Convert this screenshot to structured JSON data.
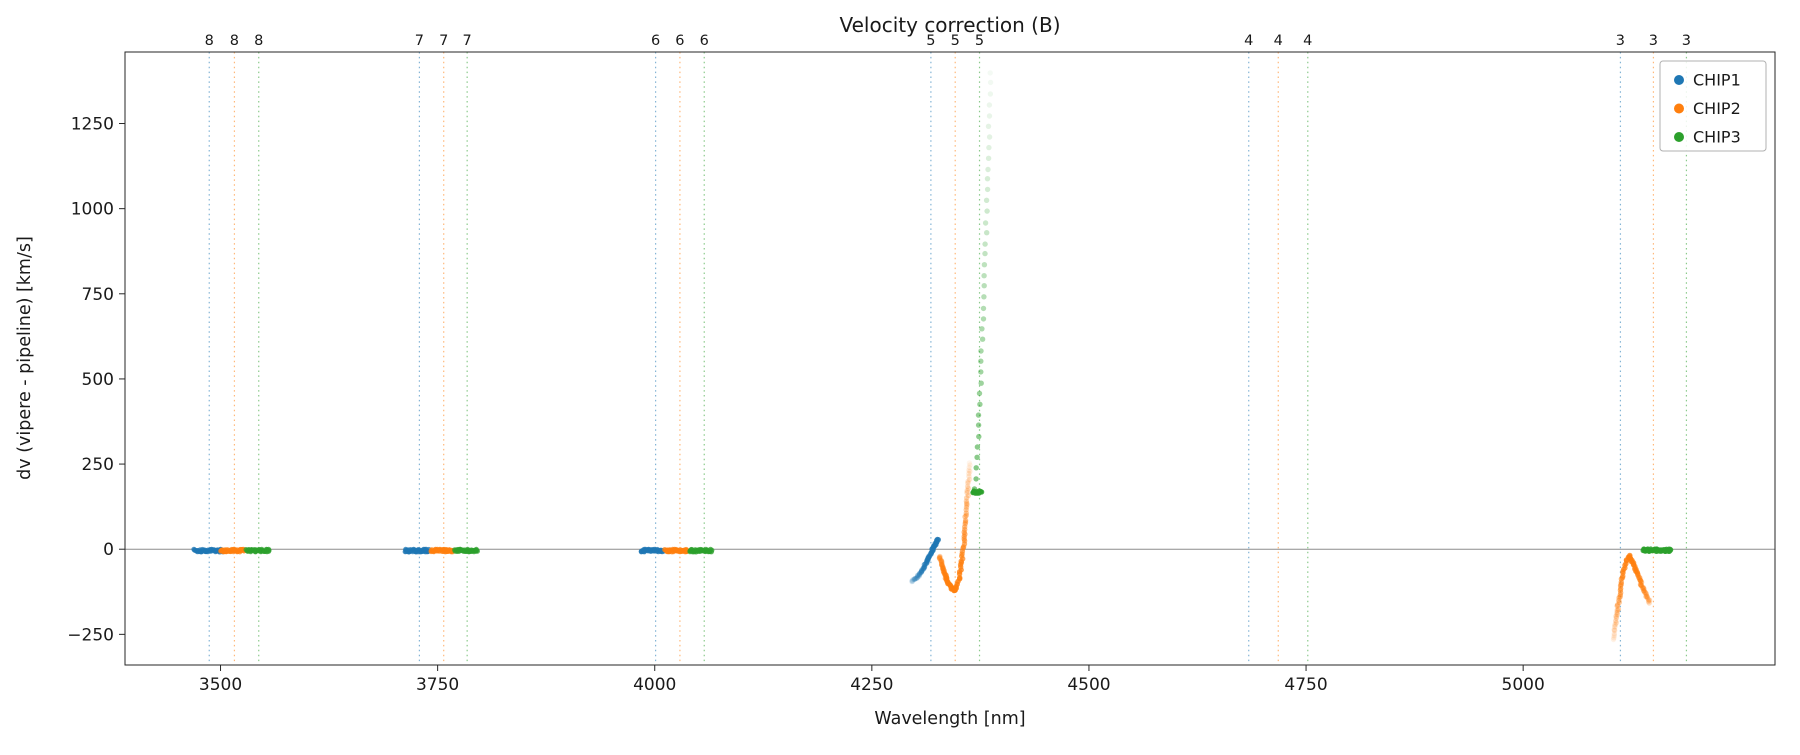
{
  "chart_data": {
    "type": "scatter",
    "title": "Velocity correction (B)",
    "xlabel": "Wavelength [nm]",
    "ylabel": "dv (vipere - pipeline) [km/s]",
    "xlim": [
      3390,
      5290
    ],
    "ylim": [
      -340,
      1460
    ],
    "xticks": [
      3500,
      3750,
      4000,
      4250,
      4500,
      4750,
      5000
    ],
    "yticks": [
      -250,
      0,
      250,
      500,
      750,
      1000,
      1250
    ],
    "grid": false,
    "zero_line": {
      "y": 0,
      "color": "#808080"
    },
    "legend": {
      "position": "upper right",
      "entries": [
        {
          "label": "CHIP1",
          "color": "#1f77b4"
        },
        {
          "label": "CHIP2",
          "color": "#ff7f0e"
        },
        {
          "label": "CHIP3",
          "color": "#2ca02c"
        }
      ]
    },
    "order_edges": [
      {
        "order": "8",
        "chip": "CHIP1",
        "x": 3487,
        "color": "#1f77b4"
      },
      {
        "order": "8",
        "chip": "CHIP2",
        "x": 3516,
        "color": "#ff7f0e"
      },
      {
        "order": "8",
        "chip": "CHIP3",
        "x": 3544,
        "color": "#2ca02c"
      },
      {
        "order": "7",
        "chip": "CHIP1",
        "x": 3729,
        "color": "#1f77b4"
      },
      {
        "order": "7",
        "chip": "CHIP2",
        "x": 3757,
        "color": "#ff7f0e"
      },
      {
        "order": "7",
        "chip": "CHIP3",
        "x": 3784,
        "color": "#2ca02c"
      },
      {
        "order": "6",
        "chip": "CHIP1",
        "x": 4001,
        "color": "#1f77b4"
      },
      {
        "order": "6",
        "chip": "CHIP2",
        "x": 4029,
        "color": "#ff7f0e"
      },
      {
        "order": "6",
        "chip": "CHIP3",
        "x": 4057,
        "color": "#2ca02c"
      },
      {
        "order": "5",
        "chip": "CHIP1",
        "x": 4318,
        "color": "#1f77b4"
      },
      {
        "order": "5",
        "chip": "CHIP2",
        "x": 4346,
        "color": "#ff7f0e"
      },
      {
        "order": "5",
        "chip": "CHIP3",
        "x": 4374,
        "color": "#2ca02c"
      },
      {
        "order": "4",
        "chip": "CHIP1",
        "x": 4684,
        "color": "#1f77b4"
      },
      {
        "order": "4",
        "chip": "CHIP2",
        "x": 4718,
        "color": "#ff7f0e"
      },
      {
        "order": "4",
        "chip": "CHIP3",
        "x": 4752,
        "color": "#2ca02c"
      },
      {
        "order": "3",
        "chip": "CHIP1",
        "x": 5112,
        "color": "#1f77b4"
      },
      {
        "order": "3",
        "chip": "CHIP2",
        "x": 5150,
        "color": "#ff7f0e"
      },
      {
        "order": "3",
        "chip": "CHIP3",
        "x": 5188,
        "color": "#2ca02c"
      }
    ],
    "series": [
      {
        "name": "CHIP1",
        "color": "#1f77b4",
        "clusters": [
          {
            "kind": "flat",
            "x0": 3470,
            "x1": 3502,
            "y": -4,
            "n": 48,
            "a0": 0.75,
            "a1": 0.75
          },
          {
            "kind": "flat",
            "x0": 3712,
            "x1": 3740,
            "y": -4,
            "n": 44,
            "a0": 0.75,
            "a1": 0.75
          },
          {
            "kind": "flat",
            "x0": 3984,
            "x1": 4010,
            "y": -4,
            "n": 42,
            "a0": 0.75,
            "a1": 0.75
          },
          {
            "kind": "curve",
            "pts": [
              [
                4296,
                -95
              ],
              [
                4303,
                -80
              ],
              [
                4309,
                -58
              ],
              [
                4314,
                -33
              ],
              [
                4319,
                -6
              ],
              [
                4323,
                16
              ],
              [
                4326,
                28
              ]
            ],
            "n": 70,
            "a0": 0.15,
            "a1": 0.8,
            "r": 2.7
          }
        ]
      },
      {
        "name": "CHIP2",
        "color": "#ff7f0e",
        "clusters": [
          {
            "kind": "flat",
            "x0": 3500,
            "x1": 3528,
            "y": -4,
            "n": 44,
            "a0": 0.75,
            "a1": 0.75
          },
          {
            "kind": "flat",
            "x0": 3742,
            "x1": 3768,
            "y": -4,
            "n": 42,
            "a0": 0.75,
            "a1": 0.75
          },
          {
            "kind": "flat",
            "x0": 4012,
            "x1": 4038,
            "y": -4,
            "n": 42,
            "a0": 0.75,
            "a1": 0.75
          },
          {
            "kind": "curve",
            "pts": [
              [
                4328,
                -20
              ],
              [
                4333,
                -65
              ],
              [
                4338,
                -100
              ],
              [
                4342,
                -116
              ],
              [
                4346,
                -122
              ]
            ],
            "n": 46,
            "a0": 0.3,
            "a1": 0.9,
            "r": 2.7
          },
          {
            "kind": "curve",
            "pts": [
              [
                4346,
                -122
              ],
              [
                4350,
                -95
              ],
              [
                4353,
                -45
              ],
              [
                4356,
                20
              ],
              [
                4358,
                85
              ],
              [
                4360,
                150
              ],
              [
                4362,
                215
              ],
              [
                4363,
                255
              ]
            ],
            "n": 55,
            "a0": 0.9,
            "a1": 0.08,
            "r": 2.7
          },
          {
            "kind": "curve",
            "pts": [
              [
                5104,
                -265
              ],
              [
                5108,
                -190
              ],
              [
                5112,
                -115
              ],
              [
                5116,
                -58
              ],
              [
                5119,
                -32
              ],
              [
                5122,
                -20
              ]
            ],
            "n": 42,
            "a0": 0.1,
            "a1": 0.8,
            "r": 2.7
          },
          {
            "kind": "curve",
            "pts": [
              [
                5122,
                -20
              ],
              [
                5127,
                -42
              ],
              [
                5132,
                -75
              ],
              [
                5137,
                -108
              ],
              [
                5142,
                -138
              ],
              [
                5146,
                -157
              ]
            ],
            "n": 45,
            "a0": 0.8,
            "a1": 0.25,
            "r": 2.7
          }
        ]
      },
      {
        "name": "CHIP3",
        "color": "#2ca02c",
        "clusters": [
          {
            "kind": "flat",
            "x0": 3530,
            "x1": 3556,
            "y": -4,
            "n": 42,
            "a0": 0.75,
            "a1": 0.75
          },
          {
            "kind": "flat",
            "x0": 3770,
            "x1": 3796,
            "y": -4,
            "n": 42,
            "a0": 0.75,
            "a1": 0.75
          },
          {
            "kind": "flat",
            "x0": 4040,
            "x1": 4066,
            "y": -4,
            "n": 42,
            "a0": 0.75,
            "a1": 0.75
          },
          {
            "kind": "flat",
            "x0": 5138,
            "x1": 5170,
            "y": -3,
            "n": 55,
            "a0": 0.85,
            "a1": 0.85
          },
          {
            "kind": "flat",
            "x0": 4366,
            "x1": 4376,
            "y": 168,
            "n": 16,
            "a0": 0.85,
            "a1": 0.85
          },
          {
            "kind": "curve",
            "pts": [
              [
                4369,
                175
              ],
              [
                4372,
                300
              ],
              [
                4375,
                480
              ],
              [
                4378,
                680
              ],
              [
                4381,
                880
              ],
              [
                4383,
                1060
              ],
              [
                4385,
                1230
              ],
              [
                4387,
                1400
              ]
            ],
            "n": 40,
            "a0": 0.6,
            "a1": 0.05,
            "r": 2.7
          }
        ]
      }
    ]
  }
}
